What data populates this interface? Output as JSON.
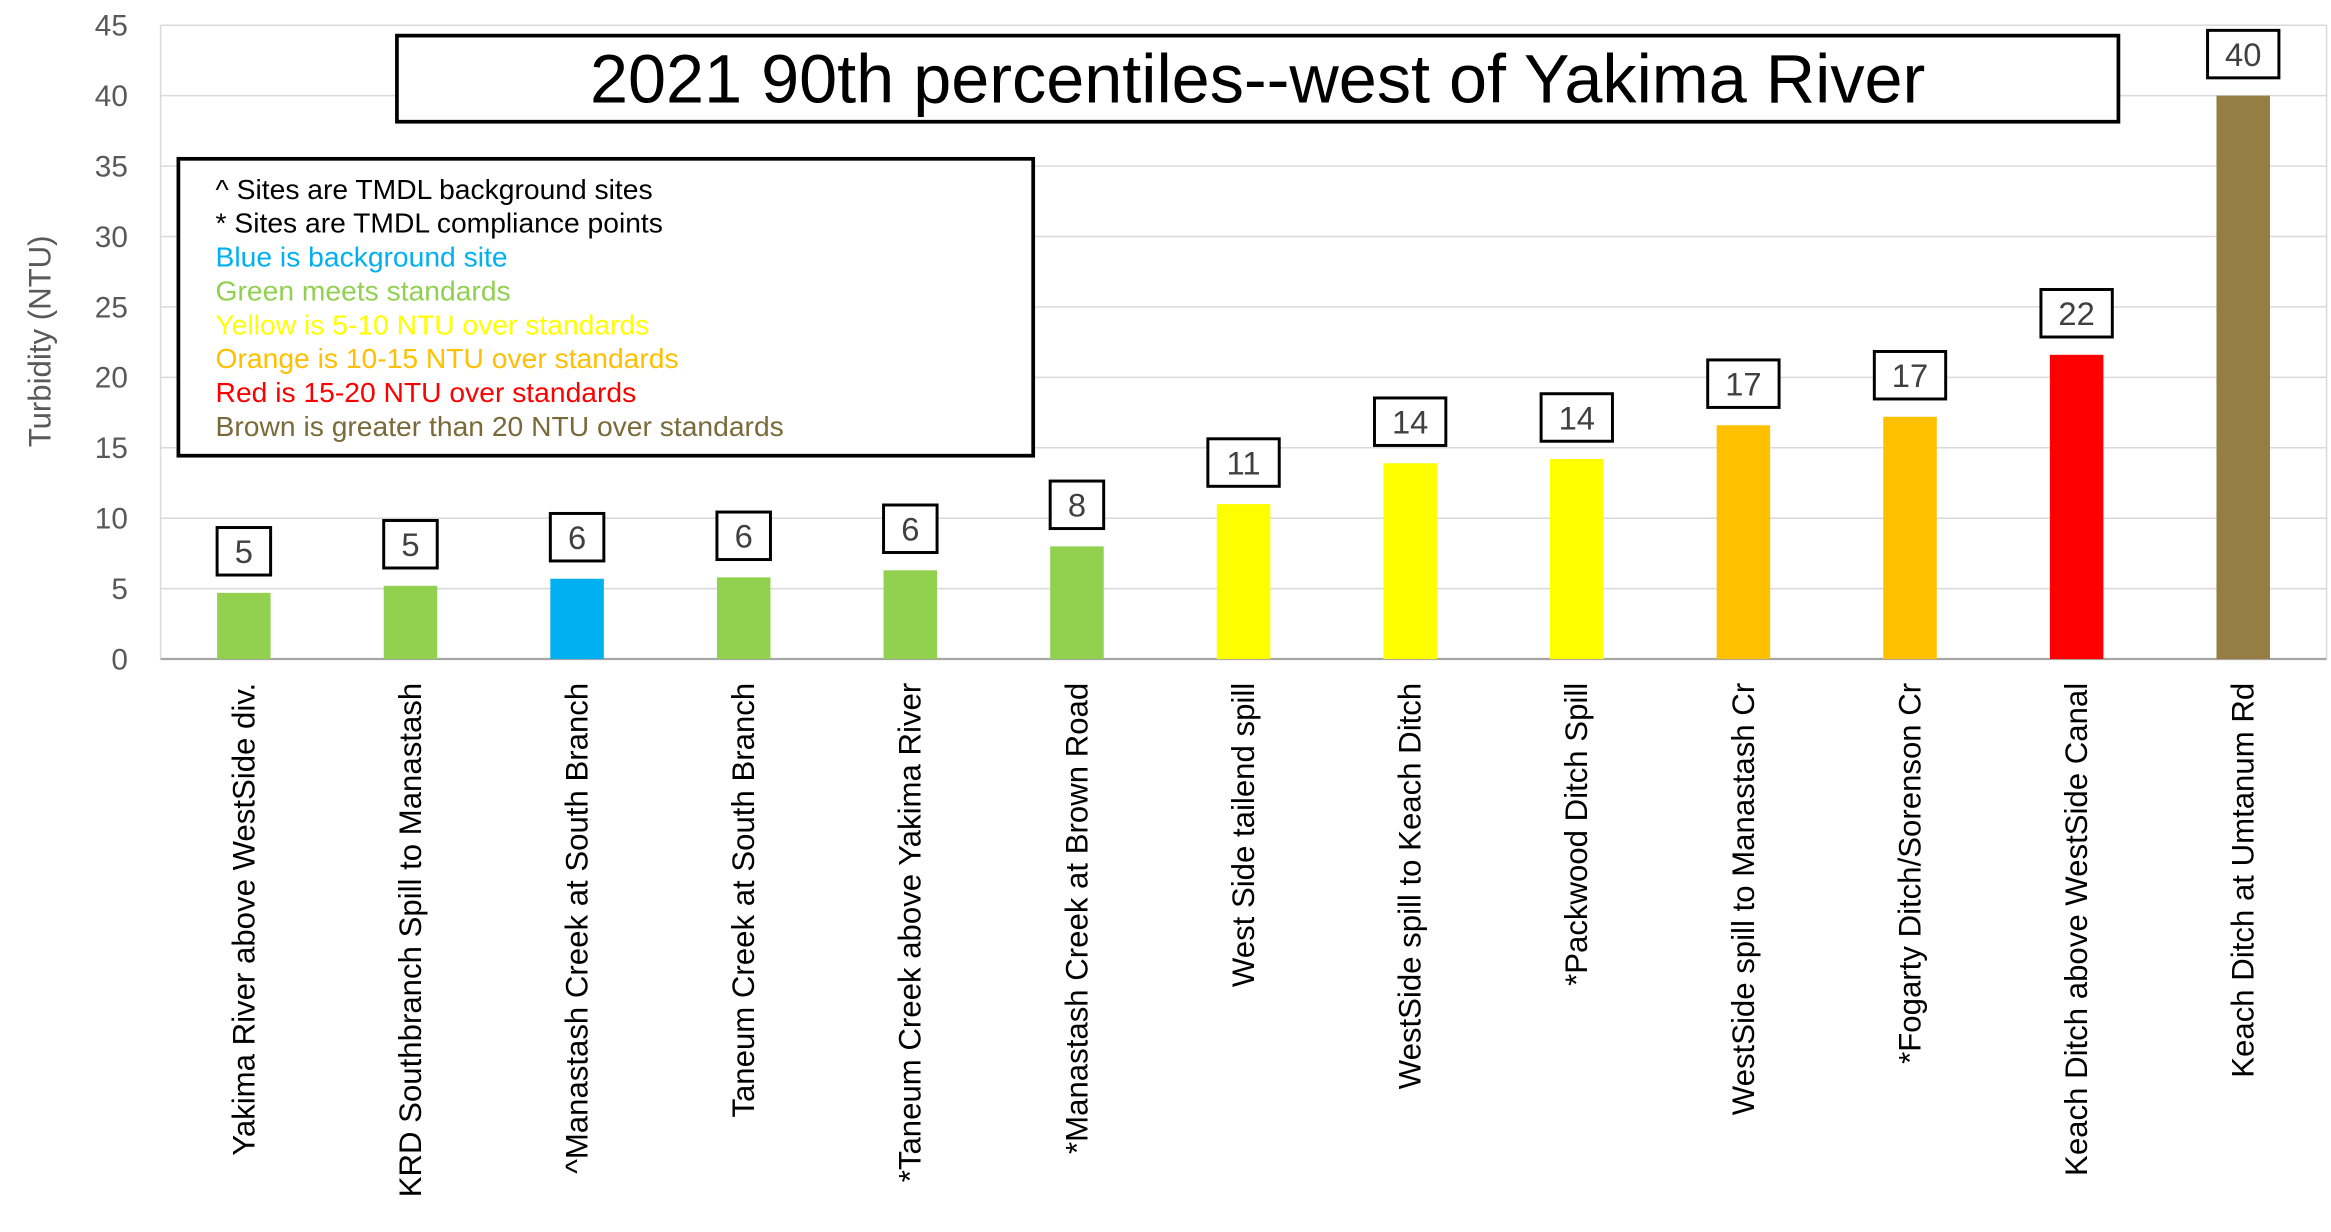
{
  "chart_data": {
    "type": "bar",
    "title": "2021 90th percentiles--west of Yakima River",
    "y_label": "Turbidity (NTU)",
    "categories": [
      "Yakima River above WestSide div.",
      "KRD Southbranch Spill to Manastash",
      "^Manastash Creek at South Branch",
      "Taneum Creek at South Branch",
      "*Taneum Creek above Yakima River",
      "*Manastash Creek at Brown Road",
      "West Side tailend spill",
      "WestSide spill to Keach Ditch",
      "*Packwood Ditch Spill",
      "WestSide spill to Manastash Cr",
      "*Fogarty Ditch/Sorenson Cr",
      "Keach Ditch above WestSide Canal",
      "Keach Ditch at Umtanum Rd"
    ],
    "values": [
      4.7,
      5.2,
      5.7,
      5.8,
      6.3,
      8.0,
      11.0,
      13.9,
      14.2,
      16.6,
      17.2,
      21.6,
      40
    ],
    "value_labels": [
      "5",
      "5",
      "6",
      "6",
      "6",
      "8",
      "11",
      "14",
      "14",
      "17",
      "17",
      "22",
      "40"
    ],
    "colors": [
      "#92d050",
      "#92d050",
      "#00b0f0",
      "#92d050",
      "#92d050",
      "#92d050",
      "#ffff00",
      "#ffff00",
      "#ffff00",
      "#ffc000",
      "#ffc000",
      "#ff0000",
      "#957d43"
    ],
    "ylim": [
      0,
      45
    ],
    "yticks": [
      0,
      5,
      10,
      15,
      20,
      25,
      30,
      35,
      40,
      45
    ],
    "grid": true,
    "legend_notes": [
      {
        "text": "^ Sites are TMDL background sites",
        "color": "#000000"
      },
      {
        "text": "* Sites are TMDL compliance points",
        "color": "#000000"
      },
      {
        "text": "Blue is background site",
        "color": "#00b0f0"
      },
      {
        "text": "Green meets standards",
        "color": "#92d050"
      },
      {
        "text": "Yellow is 5-10 NTU over standards",
        "color": "#ffff00"
      },
      {
        "text": "Orange is 10-15 NTU over standards",
        "color": "#ffc000"
      },
      {
        "text": "Red is 15-20 NTU over standards",
        "color": "#ff0000"
      },
      {
        "text": "Brown is greater than 20 NTU over standards",
        "color": "#7a6a3a"
      }
    ]
  }
}
